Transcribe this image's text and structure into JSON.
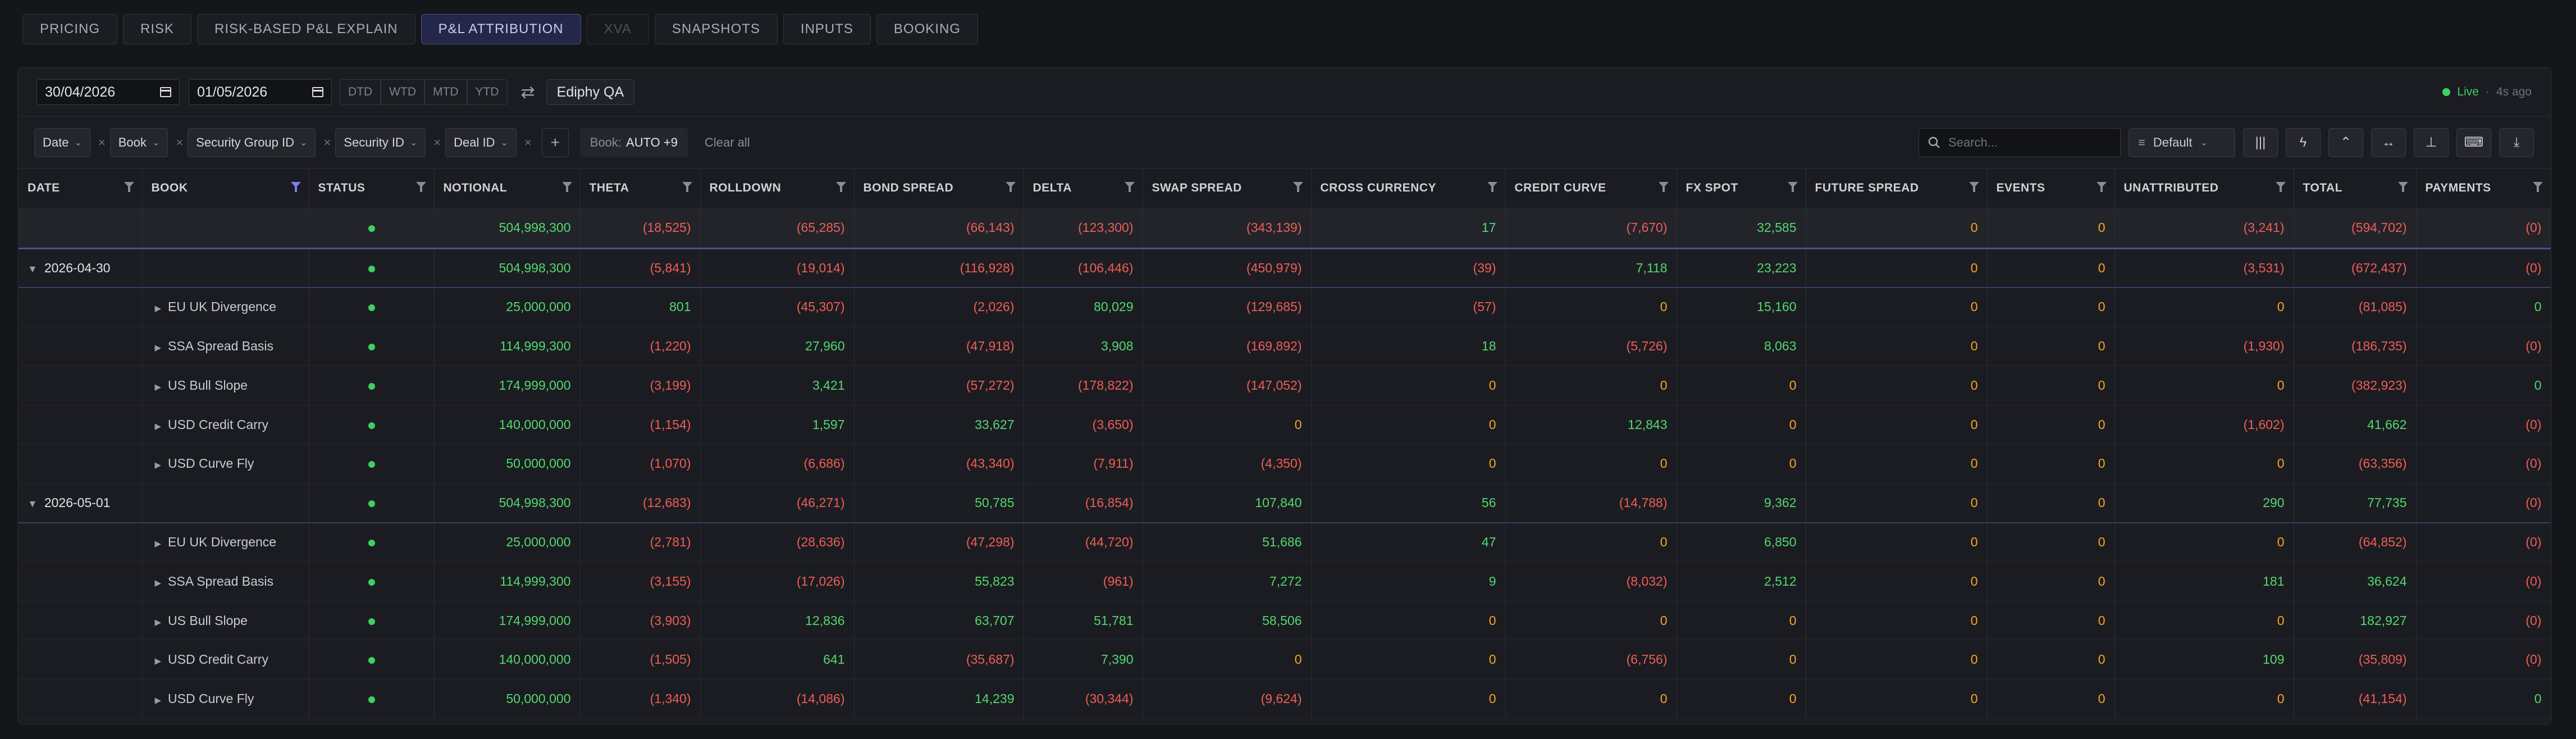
{
  "tabs": [
    {
      "label": "PRICING",
      "state": "normal"
    },
    {
      "label": "RISK",
      "state": "normal"
    },
    {
      "label": "RISK-BASED P&L EXPLAIN",
      "state": "normal"
    },
    {
      "label": "P&L ATTRIBUTION",
      "state": "active"
    },
    {
      "label": "XVA",
      "state": "disabled"
    },
    {
      "label": "SNAPSHOTS",
      "state": "normal"
    },
    {
      "label": "INPUTS",
      "state": "normal"
    },
    {
      "label": "BOOKING",
      "state": "normal"
    }
  ],
  "toolbar": {
    "start_date": "30/04/2026",
    "end_date": "01/05/2026",
    "periods": [
      "DTD",
      "WTD",
      "MTD",
      "YTD"
    ],
    "swap_icon": "swap-horizontal-icon",
    "environment": "Ediphy QA",
    "live_label": "Live",
    "updated_ago": "4s ago"
  },
  "filters": {
    "chips": [
      "Date",
      "Book",
      "Security Group ID",
      "Security ID",
      "Deal ID"
    ],
    "book_label": "Book:",
    "book_value": "AUTO +9",
    "clear_all": "Clear all",
    "search_placeholder": "Search...",
    "layout_value": "Default",
    "tool_icons": [
      "columns-icon",
      "lightning-icon",
      "chevron-up-icon",
      "expand-horizontal-icon",
      "pin-icon",
      "keyboard-icon",
      "download-icon"
    ]
  },
  "colors": {
    "positive": "#52d86f",
    "negative": "#ef5d56",
    "zero": "#f5a524",
    "accent": "#7b7ff0",
    "status": "#3fcf63"
  },
  "columns": [
    "DATE",
    "BOOK",
    "STATUS",
    "NOTIONAL",
    "THETA",
    "ROLLDOWN",
    "BOND SPREAD",
    "DELTA",
    "SWAP SPREAD",
    "CROSS CURRENCY",
    "CREDIT CURVE",
    "FX SPOT",
    "FUTURE SPREAD",
    "EVENTS",
    "UNATTRIBUTED",
    "TOTAL",
    "PAYMENTS"
  ],
  "rows": [
    {
      "type": "total",
      "date": "",
      "book": "",
      "cells": [
        "504,998,300",
        "(18,525)",
        "(65,285)",
        "(66,143)",
        "(123,300)",
        "(343,139)",
        "17",
        "(7,670)",
        "32,585",
        "0",
        "0",
        "(3,241)",
        "(594,702)",
        "(0)"
      ]
    },
    {
      "type": "group",
      "date": "2026-04-30",
      "book": "",
      "cells": [
        "504,998,300",
        "(5,841)",
        "(19,014)",
        "(116,928)",
        "(106,446)",
        "(450,979)",
        "(39)",
        "7,118",
        "23,223",
        "0",
        "0",
        "(3,531)",
        "(672,437)",
        "(0)"
      ]
    },
    {
      "type": "book",
      "date": "",
      "book": "EU UK Divergence",
      "cells": [
        "25,000,000",
        "801",
        "(45,307)",
        "(2,026)",
        "80,029",
        "(129,685)",
        "(57)",
        "0",
        "15,160",
        "0",
        "0",
        "0",
        "(81,085)",
        "0"
      ]
    },
    {
      "type": "book",
      "date": "",
      "book": "SSA Spread Basis",
      "cells": [
        "114,999,300",
        "(1,220)",
        "27,960",
        "(47,918)",
        "3,908",
        "(169,892)",
        "18",
        "(5,726)",
        "8,063",
        "0",
        "0",
        "(1,930)",
        "(186,735)",
        "(0)"
      ]
    },
    {
      "type": "book",
      "date": "",
      "book": "US Bull Slope",
      "cells": [
        "174,999,000",
        "(3,199)",
        "3,421",
        "(57,272)",
        "(178,822)",
        "(147,052)",
        "0",
        "0",
        "0",
        "0",
        "0",
        "0",
        "(382,923)",
        "0"
      ]
    },
    {
      "type": "book",
      "date": "",
      "book": "USD Credit Carry",
      "cells": [
        "140,000,000",
        "(1,154)",
        "1,597",
        "33,627",
        "(3,650)",
        "0",
        "0",
        "12,843",
        "0",
        "0",
        "0",
        "(1,602)",
        "41,662",
        "(0)"
      ]
    },
    {
      "type": "book",
      "date": "",
      "book": "USD Curve Fly",
      "cells": [
        "50,000,000",
        "(1,070)",
        "(6,686)",
        "(43,340)",
        "(7,911)",
        "(4,350)",
        "0",
        "0",
        "0",
        "0",
        "0",
        "0",
        "(63,356)",
        "(0)"
      ]
    },
    {
      "type": "group",
      "date": "2026-05-01",
      "book": "",
      "cells": [
        "504,998,300",
        "(12,683)",
        "(46,271)",
        "50,785",
        "(16,854)",
        "107,840",
        "56",
        "(14,788)",
        "9,362",
        "0",
        "0",
        "290",
        "77,735",
        "(0)"
      ]
    },
    {
      "type": "book",
      "date": "",
      "book": "EU UK Divergence",
      "cells": [
        "25,000,000",
        "(2,781)",
        "(28,636)",
        "(47,298)",
        "(44,720)",
        "51,686",
        "47",
        "0",
        "6,850",
        "0",
        "0",
        "0",
        "(64,852)",
        "(0)"
      ]
    },
    {
      "type": "book",
      "date": "",
      "book": "SSA Spread Basis",
      "cells": [
        "114,999,300",
        "(3,155)",
        "(17,026)",
        "55,823",
        "(961)",
        "7,272",
        "9",
        "(8,032)",
        "2,512",
        "0",
        "0",
        "181",
        "36,624",
        "(0)"
      ]
    },
    {
      "type": "book",
      "date": "",
      "book": "US Bull Slope",
      "cells": [
        "174,999,000",
        "(3,903)",
        "12,836",
        "63,707",
        "51,781",
        "58,506",
        "0",
        "0",
        "0",
        "0",
        "0",
        "0",
        "182,927",
        "(0)"
      ]
    },
    {
      "type": "book",
      "date": "",
      "book": "USD Credit Carry",
      "cells": [
        "140,000,000",
        "(1,505)",
        "641",
        "(35,687)",
        "7,390",
        "0",
        "0",
        "(6,756)",
        "0",
        "0",
        "0",
        "109",
        "(35,809)",
        "(0)"
      ]
    },
    {
      "type": "book",
      "date": "",
      "book": "USD Curve Fly",
      "cells": [
        "50,000,000",
        "(1,340)",
        "(14,086)",
        "14,239",
        "(30,344)",
        "(9,624)",
        "0",
        "0",
        "0",
        "0",
        "0",
        "0",
        "(41,154)",
        "0"
      ]
    }
  ]
}
